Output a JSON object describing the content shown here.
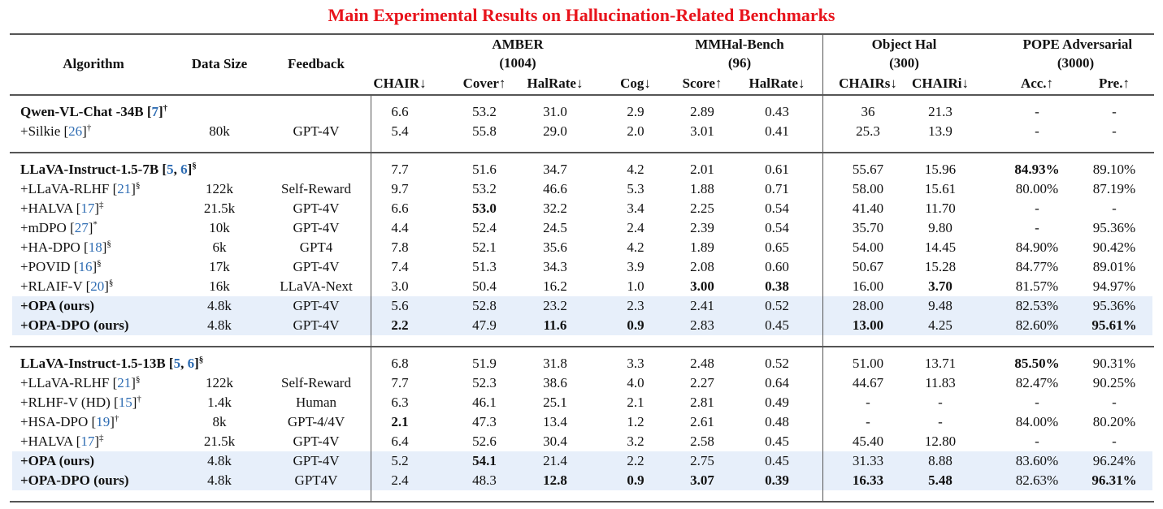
{
  "title": "Main Experimental Results on Hallucination-Related Benchmarks",
  "table": {
    "header": {
      "columns": [
        "Algorithm",
        "Data Size",
        "Feedback"
      ],
      "groups": [
        {
          "name": "AMBER",
          "count": "(1004)",
          "span": 4
        },
        {
          "name": "MMHal-Bench",
          "count": "(96)",
          "span": 2
        },
        {
          "name": "Object Hal",
          "count": "(300)",
          "span": 2
        },
        {
          "name": "POPE Adversarial",
          "count": "(3000)",
          "span": 2
        }
      ],
      "metrics": [
        "CHAIR↓",
        "Cover↑",
        "HalRate↓",
        "Cog↓",
        "Score↑",
        "HalRate↓",
        "CHAIRs↓",
        "CHAIRi↓",
        "Acc.↑",
        "Pre.↑"
      ]
    },
    "groups": [
      {
        "rows": [
          {
            "algorithm": [
              {
                "text": "Qwen-VL-Chat -34B ["
              },
              {
                "text": "7",
                "style": "ref"
              },
              {
                "text": "]"
              },
              {
                "text": "†",
                "style": "sup"
              }
            ],
            "bold_name": true,
            "cells": [
              "6.6",
              "53.2",
              "31.0",
              "2.9",
              "2.89",
              "0.43",
              "36",
              "21.3",
              "-",
              "-"
            ],
            "bold": []
          },
          {
            "algorithm": [
              {
                "text": "+Silkie ["
              },
              {
                "text": "26",
                "style": "ref"
              },
              {
                "text": "]"
              },
              {
                "text": "†",
                "style": "sup"
              }
            ],
            "data_size": "80k",
            "feedback": "GPT-4V",
            "cells": [
              "5.4",
              "55.8",
              "29.0",
              "2.0",
              "3.01",
              "0.41",
              "25.3",
              "13.9",
              "-",
              "-"
            ],
            "bold": []
          }
        ]
      },
      {
        "rows": [
          {
            "algorithm": [
              {
                "text": "LLaVA-Instruct-1.5-7B ["
              },
              {
                "text": "5",
                "style": "ref"
              },
              {
                "text": ", "
              },
              {
                "text": "6",
                "style": "ref"
              },
              {
                "text": "]"
              },
              {
                "text": "§",
                "style": "sup"
              }
            ],
            "bold_name": true,
            "cells": [
              "7.7",
              "51.6",
              "34.7",
              "4.2",
              "2.01",
              "0.61",
              "55.67",
              "15.96",
              "84.93%",
              "89.10%"
            ],
            "bold": [
              8
            ]
          },
          {
            "algorithm": [
              {
                "text": "+LLaVA-RLHF ["
              },
              {
                "text": "21",
                "style": "ref"
              },
              {
                "text": "]"
              },
              {
                "text": "§",
                "style": "sup"
              }
            ],
            "data_size": "122k",
            "feedback": "Self-Reward",
            "cells": [
              "9.7",
              "53.2",
              "46.6",
              "5.3",
              "1.88",
              "0.71",
              "58.00",
              "15.61",
              "80.00%",
              "87.19%"
            ],
            "bold": []
          },
          {
            "algorithm": [
              {
                "text": "+HALVA ["
              },
              {
                "text": "17",
                "style": "ref"
              },
              {
                "text": "]"
              },
              {
                "text": "‡",
                "style": "sup"
              }
            ],
            "data_size": "21.5k",
            "feedback": "GPT-4V",
            "cells": [
              "6.6",
              "53.0",
              "32.2",
              "3.4",
              "2.25",
              "0.54",
              "41.40",
              "11.70",
              "-",
              "-"
            ],
            "bold": [
              1
            ]
          },
          {
            "algorithm": [
              {
                "text": "+mDPO ["
              },
              {
                "text": "27",
                "style": "ref"
              },
              {
                "text": "]"
              },
              {
                "text": "*",
                "style": "sup"
              }
            ],
            "data_size": "10k",
            "feedback": "GPT-4V",
            "cells": [
              "4.4",
              "52.4",
              "24.5",
              "2.4",
              "2.39",
              "0.54",
              "35.70",
              "9.80",
              "-",
              "95.36%"
            ],
            "bold": []
          },
          {
            "algorithm": [
              {
                "text": "+HA-DPO ["
              },
              {
                "text": "18",
                "style": "ref"
              },
              {
                "text": "]"
              },
              {
                "text": "§",
                "style": "sup"
              }
            ],
            "data_size": "6k",
            "feedback": "GPT4",
            "cells": [
              "7.8",
              "52.1",
              "35.6",
              "4.2",
              "1.89",
              "0.65",
              "54.00",
              "14.45",
              "84.90%",
              "90.42%"
            ],
            "bold": []
          },
          {
            "algorithm": [
              {
                "text": "+POVID ["
              },
              {
                "text": "16",
                "style": "ref"
              },
              {
                "text": "]"
              },
              {
                "text": "§",
                "style": "sup"
              }
            ],
            "data_size": "17k",
            "feedback": "GPT-4V",
            "cells": [
              "7.4",
              "51.3",
              "34.3",
              "3.9",
              "2.08",
              "0.60",
              "50.67",
              "15.28",
              "84.77%",
              "89.01%"
            ],
            "bold": []
          },
          {
            "algorithm": [
              {
                "text": "+RLAIF-V ["
              },
              {
                "text": "20",
                "style": "ref"
              },
              {
                "text": "]"
              },
              {
                "text": "§",
                "style": "sup"
              }
            ],
            "data_size": "16k",
            "feedback": "LLaVA-Next",
            "cells": [
              "3.0",
              "50.4",
              "16.2",
              "1.0",
              "3.00",
              "0.38",
              "16.00",
              "3.70",
              "81.57%",
              "94.97%"
            ],
            "bold": [
              4,
              5,
              7
            ]
          },
          {
            "algorithm": [
              {
                "text": "+OPA (ours)"
              }
            ],
            "bold_name": true,
            "highlight": true,
            "data_size": "4.8k",
            "feedback": "GPT-4V",
            "cells": [
              "5.6",
              "52.8",
              "23.2",
              "2.3",
              "2.41",
              "0.52",
              "28.00",
              "9.48",
              "82.53%",
              "95.36%"
            ],
            "bold": []
          },
          {
            "algorithm": [
              {
                "text": "+OPA-DPO (ours)"
              }
            ],
            "bold_name": true,
            "highlight": true,
            "data_size": "4.8k",
            "feedback": "GPT-4V",
            "cells": [
              "2.2",
              "47.9",
              "11.6",
              "0.9",
              "2.83",
              "0.45",
              "13.00",
              "4.25",
              "82.60%",
              "95.61%"
            ],
            "bold": [
              0,
              2,
              3,
              6,
              9
            ]
          }
        ]
      },
      {
        "rows": [
          {
            "algorithm": [
              {
                "text": "LLaVA-Instruct-1.5-13B ["
              },
              {
                "text": "5",
                "style": "ref"
              },
              {
                "text": ", "
              },
              {
                "text": "6",
                "style": "ref"
              },
              {
                "text": "]"
              },
              {
                "text": "§",
                "style": "sup"
              }
            ],
            "bold_name": true,
            "cells": [
              "6.8",
              "51.9",
              "31.8",
              "3.3",
              "2.48",
              "0.52",
              "51.00",
              "13.71",
              "85.50%",
              "90.31%"
            ],
            "bold": [
              8
            ]
          },
          {
            "algorithm": [
              {
                "text": "+LLaVA-RLHF ["
              },
              {
                "text": "21",
                "style": "ref"
              },
              {
                "text": "]"
              },
              {
                "text": "§",
                "style": "sup"
              }
            ],
            "data_size": "122k",
            "feedback": "Self-Reward",
            "cells": [
              "7.7",
              "52.3",
              "38.6",
              "4.0",
              "2.27",
              "0.64",
              "44.67",
              "11.83",
              "82.47%",
              "90.25%"
            ],
            "bold": []
          },
          {
            "algorithm": [
              {
                "text": "+RLHF-V (HD) ["
              },
              {
                "text": "15",
                "style": "ref"
              },
              {
                "text": "]"
              },
              {
                "text": "†",
                "style": "sup"
              }
            ],
            "data_size": "1.4k",
            "feedback": "Human",
            "cells": [
              "6.3",
              "46.1",
              "25.1",
              "2.1",
              "2.81",
              "0.49",
              "-",
              "-",
              "-",
              "-"
            ],
            "bold": []
          },
          {
            "algorithm": [
              {
                "text": "+HSA-DPO ["
              },
              {
                "text": "19",
                "style": "ref"
              },
              {
                "text": "]"
              },
              {
                "text": "†",
                "style": "sup"
              }
            ],
            "data_size": "8k",
            "feedback": "GPT-4/4V",
            "cells": [
              "2.1",
              "47.3",
              "13.4",
              "1.2",
              "2.61",
              "0.48",
              "-",
              "-",
              "84.00%",
              "80.20%"
            ],
            "bold": [
              0
            ]
          },
          {
            "algorithm": [
              {
                "text": "+HALVA ["
              },
              {
                "text": "17",
                "style": "ref"
              },
              {
                "text": "]"
              },
              {
                "text": "‡",
                "style": "sup"
              }
            ],
            "data_size": "21.5k",
            "feedback": "GPT-4V",
            "cells": [
              "6.4",
              "52.6",
              "30.4",
              "3.2",
              "2.58",
              "0.45",
              "45.40",
              "12.80",
              "-",
              "-"
            ],
            "bold": []
          },
          {
            "algorithm": [
              {
                "text": "+OPA (ours)"
              }
            ],
            "bold_name": true,
            "highlight": true,
            "data_size": "4.8k",
            "feedback": "GPT-4V",
            "cells": [
              "5.2",
              "54.1",
              "21.4",
              "2.2",
              "2.75",
              "0.45",
              "31.33",
              "8.88",
              "83.60%",
              "96.24%"
            ],
            "bold": [
              1
            ]
          },
          {
            "algorithm": [
              {
                "text": "+OPA-DPO (ours)"
              }
            ],
            "bold_name": true,
            "highlight": true,
            "data_size": "4.8k",
            "feedback": "GPT4V",
            "cells": [
              "2.4",
              "48.3",
              "12.8",
              "0.9",
              "3.07",
              "0.39",
              "16.33",
              "5.48",
              "82.63%",
              "96.31%"
            ],
            "bold": [
              2,
              3,
              4,
              5,
              6,
              7,
              9
            ]
          }
        ]
      }
    ]
  }
}
